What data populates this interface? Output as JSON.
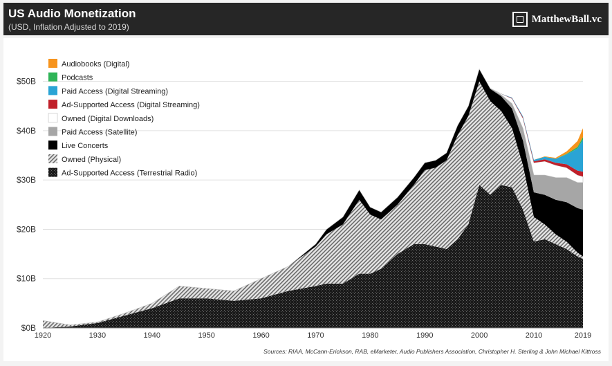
{
  "header": {
    "title": "US Audio Monetization",
    "subtitle": "(USD, Inflation Adjusted to 2019)",
    "brand": "MatthewBall.vc"
  },
  "source": "Sources: RIAA, McCann-Erickson, RAB, eMarketer, Audio Publishers Association, Christopher H. Sterling & John Michael Kittross",
  "colors": {
    "audiobooks": "#f7941d",
    "podcasts": "#2fb457",
    "paid_streaming": "#2aa4d5",
    "ad_streaming": "#c0202a",
    "downloads": "#ffffff",
    "satellite": "#a6a6a6",
    "concerts": "#000000",
    "physical": "#cfcfcf",
    "radio": "#1a1a1a"
  },
  "chart_data": {
    "type": "area",
    "stacked": true,
    "title": "US Audio Monetization",
    "subtitle": "(USD, Inflation Adjusted to 2019)",
    "xlim": [
      1920,
      2019
    ],
    "ylim": [
      0,
      55
    ],
    "y_ticks": [
      "$0B",
      "$10B",
      "$20B",
      "$30B",
      "$40B",
      "$50B"
    ],
    "y_tick_values": [
      0,
      10,
      20,
      30,
      40,
      50
    ],
    "x_ticks": [
      "1920",
      "1930",
      "1940",
      "1950",
      "1960",
      "1970",
      "1980",
      "1990",
      "2000",
      "2010",
      "2019"
    ],
    "x_tick_values": [
      1920,
      1930,
      1940,
      1950,
      1960,
      1970,
      1980,
      1990,
      2000,
      2010,
      2019
    ],
    "legend_position": "top-left",
    "x": [
      1920,
      1925,
      1930,
      1935,
      1940,
      1945,
      1950,
      1955,
      1960,
      1965,
      1970,
      1972,
      1975,
      1978,
      1980,
      1982,
      1985,
      1988,
      1990,
      1992,
      1994,
      1996,
      1998,
      2000,
      2002,
      2004,
      2006,
      2008,
      2010,
      2012,
      2014,
      2016,
      2018,
      2019
    ],
    "series": [
      {
        "name": "Ad-Supported Access (Terrestrial Radio)",
        "key": "radio",
        "values": [
          0,
          0.3,
          1,
          2.5,
          4,
          6,
          6,
          5.5,
          6,
          7.5,
          8.5,
          9,
          9,
          11,
          11,
          12,
          15,
          17,
          17,
          16.5,
          16,
          18,
          21,
          29,
          27,
          29,
          28.5,
          24,
          17.5,
          18,
          17,
          16,
          14.5,
          14
        ]
      },
      {
        "name": "Owned (Physical)",
        "key": "physical",
        "values": [
          1.5,
          0.3,
          0.2,
          0.5,
          1,
          2.5,
          2,
          2,
          4,
          5,
          8,
          10,
          12,
          15,
          12,
          10,
          10,
          12,
          15,
          16,
          18,
          21,
          22,
          21,
          19,
          15,
          12,
          9,
          5,
          3,
          2,
          1.5,
          0.8,
          0.5
        ]
      },
      {
        "name": "Live Concerts",
        "key": "concerts",
        "values": [
          0,
          0,
          0,
          0,
          0,
          0,
          0,
          0,
          0,
          0,
          0.5,
          1,
          1.5,
          2,
          1.5,
          1.5,
          1.5,
          1.5,
          1.5,
          1.5,
          1.5,
          2,
          2,
          2.5,
          2.5,
          3,
          4,
          5,
          5,
          6,
          7,
          8,
          9,
          9.5
        ]
      },
      {
        "name": "Paid Access (Satellite)",
        "key": "satellite",
        "values": [
          0,
          0,
          0,
          0,
          0,
          0,
          0,
          0,
          0,
          0,
          0,
          0,
          0,
          0,
          0,
          0,
          0,
          0,
          0,
          0,
          0,
          0,
          0,
          0,
          0.1,
          0.3,
          1,
          2.5,
          3.5,
          4,
          4.5,
          5,
          5.2,
          5.5
        ]
      },
      {
        "name": "Owned (Digital Downloads)",
        "key": "downloads",
        "values": [
          0,
          0,
          0,
          0,
          0,
          0,
          0,
          0,
          0,
          0,
          0,
          0,
          0,
          0,
          0,
          0,
          0,
          0,
          0,
          0,
          0,
          0,
          0,
          0,
          0,
          0.2,
          1,
          2,
          2.5,
          2.8,
          2.5,
          2,
          1.5,
          1.2
        ]
      },
      {
        "name": "Ad-Supported Access (Digital Streaming)",
        "key": "ad_streaming",
        "values": [
          0,
          0,
          0,
          0,
          0,
          0,
          0,
          0,
          0,
          0,
          0,
          0,
          0,
          0,
          0,
          0,
          0,
          0,
          0,
          0,
          0,
          0,
          0,
          0,
          0,
          0,
          0.1,
          0.2,
          0.3,
          0.4,
          0.5,
          0.7,
          0.9,
          1
        ]
      },
      {
        "name": "Paid Access (Digital Streaming)",
        "key": "paid_streaming",
        "values": [
          0,
          0,
          0,
          0,
          0,
          0,
          0,
          0,
          0,
          0,
          0,
          0,
          0,
          0,
          0,
          0,
          0,
          0,
          0,
          0,
          0,
          0,
          0,
          0,
          0,
          0,
          0.1,
          0.2,
          0.3,
          0.5,
          0.8,
          2,
          4.5,
          6.5
        ]
      },
      {
        "name": "Podcasts",
        "key": "podcasts",
        "values": [
          0,
          0,
          0,
          0,
          0,
          0,
          0,
          0,
          0,
          0,
          0,
          0,
          0,
          0,
          0,
          0,
          0,
          0,
          0,
          0,
          0,
          0,
          0,
          0,
          0,
          0,
          0,
          0,
          0,
          0,
          0,
          0.1,
          0.3,
          0.5
        ]
      },
      {
        "name": "Audiobooks (Digital)",
        "key": "audiobooks",
        "values": [
          0,
          0,
          0,
          0,
          0,
          0,
          0,
          0,
          0,
          0,
          0,
          0,
          0,
          0,
          0,
          0,
          0,
          0,
          0,
          0,
          0,
          0,
          0,
          0,
          0,
          0,
          0,
          0,
          0,
          0.1,
          0.2,
          0.5,
          1.2,
          1.8
        ]
      }
    ],
    "legend_order": [
      "audiobooks",
      "podcasts",
      "paid_streaming",
      "ad_streaming",
      "downloads",
      "satellite",
      "concerts",
      "physical",
      "radio"
    ]
  }
}
